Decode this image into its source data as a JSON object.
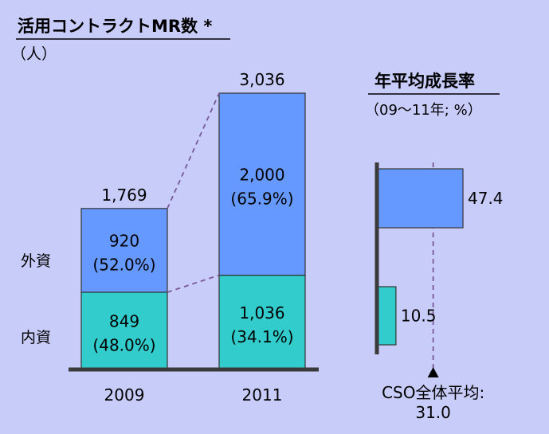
{
  "chart_data": [
    {
      "type": "bar",
      "stacked": true,
      "title": "活用コントラクトMR数 *",
      "unit": "（人）",
      "categories": [
        "2009",
        "2011"
      ],
      "series": [
        {
          "name": "内資",
          "values": [
            849,
            1036
          ],
          "value_labels": [
            "849",
            "1,036"
          ],
          "share_labels": [
            "(48.0%)",
            "(34.1%)"
          ],
          "color": "#33cccc"
        },
        {
          "name": "外資",
          "values": [
            920,
            2000
          ],
          "value_labels": [
            "920",
            "2,000"
          ],
          "share_labels": [
            "(52.0%)",
            "(65.9%)"
          ],
          "color": "#6699ff"
        }
      ],
      "totals": [
        1769,
        3036
      ],
      "total_labels": [
        "1,769",
        "3,036"
      ],
      "ylim": [
        0,
        3036
      ]
    },
    {
      "type": "bar",
      "orientation": "horizontal",
      "title": "年平均成長率",
      "subtitle": "（09～11年; %）",
      "bars": [
        {
          "value": 47.4,
          "label": "47.4",
          "color": "#6699ff"
        },
        {
          "value": 10.5,
          "label": "10.5",
          "color": "#33cccc"
        }
      ],
      "reference": {
        "value": 31.0,
        "label_line1": "CSO全体平均:",
        "label_line2": "31.0"
      },
      "xlim": [
        0,
        47.4
      ]
    }
  ]
}
